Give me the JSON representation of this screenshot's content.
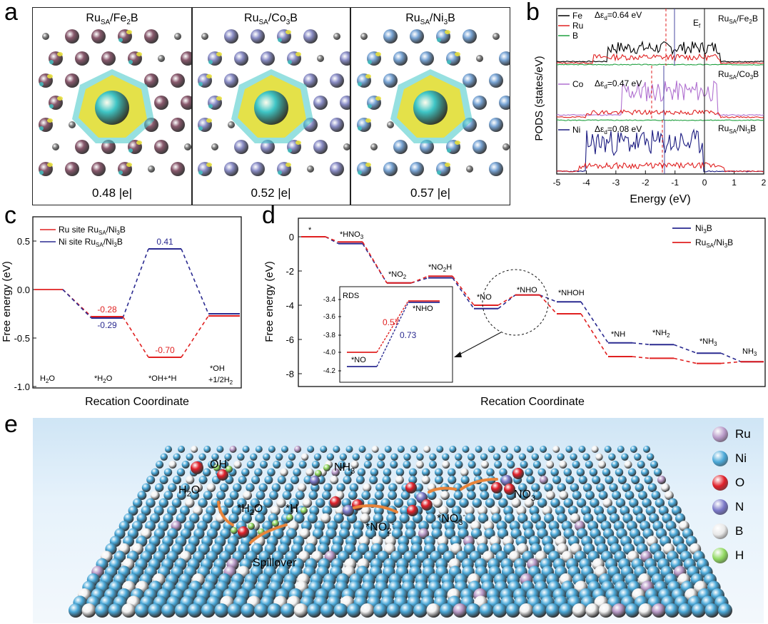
{
  "figure": {
    "panel_labels": {
      "a": "a",
      "b": "b",
      "c": "c",
      "d": "d",
      "e": "e"
    }
  },
  "panel_a": {
    "titles": [
      {
        "main": "Ru",
        "sub": "SA",
        "rest": "/Fe",
        "sub2": "2",
        "tail": "B"
      },
      {
        "main": "Ru",
        "sub": "SA",
        "rest": "/Co",
        "sub2": "3",
        "tail": "B"
      },
      {
        "main": "Ru",
        "sub": "SA",
        "rest": "/Ni",
        "sub2": "3",
        "tail": "B"
      }
    ],
    "charges": [
      "0.48 |e|",
      "0.52 |e|",
      "0.57 |e|"
    ],
    "colors": {
      "fe": "#8a5a6e",
      "co": "#8c8fc8",
      "ni": "#7aa6d6",
      "b": "#8a8a8a",
      "yellow": "#e8e040",
      "cyan": "#3fc6c6"
    }
  },
  "panel_b": {
    "ylabel": "PODS (states/eV)",
    "xlabel": "Energy (eV)",
    "xticks": [
      "-5",
      "-4",
      "-3",
      "-2",
      "-1",
      "0",
      "1",
      "2"
    ],
    "ef_label": "E",
    "ef_sub": "f",
    "legend1": [
      {
        "name": "Fe",
        "color": "#000000"
      },
      {
        "name": "Ru",
        "color": "#e02020"
      },
      {
        "name": "B",
        "color": "#20a040"
      }
    ],
    "legend2": {
      "name": "Co",
      "color": "#b070d0"
    },
    "legend3": {
      "name": "Ni",
      "color": "#1a1a80"
    },
    "deltas": [
      "Δε",
      "=0.64 eV",
      "=0.47 eV",
      "=0.08 eV"
    ],
    "delta_sub": "d",
    "sys": [
      "Ru",
      "SA",
      "/Fe",
      "2",
      "B",
      "/Co",
      "3",
      "/Ni"
    ]
  },
  "panel_c": {
    "ylabel": "Free energy (eV)",
    "xlabel": "Recation Coordinate",
    "yticks": [
      "0.5",
      "0.0",
      "-0.5",
      "-1.0"
    ],
    "legend": [
      {
        "name": "Ru site Ru",
        "color": "#e02020"
      },
      {
        "name": "Ni site Ru",
        "color": "#2a2a90"
      }
    ],
    "legend_tail": [
      "SA",
      "/Ni",
      "3",
      "B"
    ],
    "steps": [
      "H",
      "2",
      "O",
      "*H",
      "2",
      "O",
      "*OH+*H",
      "*OH",
      "+1/2H",
      "2"
    ],
    "values_red": [
      "-0.28",
      "-0.70"
    ],
    "values_blue": [
      "-0.29",
      "0.41"
    ],
    "colors": {
      "red": "#e02020",
      "blue": "#2a2a90"
    }
  },
  "panel_d": {
    "ylabel": "Free energy (eV)",
    "xlabel": "Recation Coordinate",
    "yticks": [
      "0",
      "-2",
      "-4",
      "-6",
      "-8"
    ],
    "legend": [
      {
        "name": "Ni",
        "sub": "3",
        "tail": "B",
        "color": "#2a2a90"
      },
      {
        "name": "Ru",
        "sub": "SA",
        "tail": "/Ni",
        "sub2": "3",
        "tail2": "B",
        "color": "#e02020"
      }
    ],
    "steps": [
      "*",
      "*HNO",
      "3",
      "*NO",
      "2",
      "*NO",
      "2",
      "H",
      "*NO",
      "*NHO",
      "*NHOH",
      "*NH",
      "*NH",
      "2",
      "*NH",
      "3",
      "NH",
      "3"
    ],
    "inset": {
      "title": "RDS",
      "yticks": [
        "-3.4",
        "-3.6",
        "-3.8",
        "-4.0",
        "-4.2"
      ],
      "red_value": "0.57",
      "blue_value": "0.73",
      "left_label": "*NO",
      "right_label": "*NHO"
    }
  },
  "panel_e": {
    "legend": [
      {
        "name": "Ru",
        "color": "#b89ac8"
      },
      {
        "name": "Ni",
        "color": "#4aa8d8"
      },
      {
        "name": "O",
        "color": "#e0202a"
      },
      {
        "name": "N",
        "color": "#7a78c8"
      },
      {
        "name": "B",
        "color": "#e8e8e8"
      },
      {
        "name": "H",
        "color": "#90d860"
      }
    ],
    "labels": {
      "oh": "OH",
      "oh_sup": "-",
      "h2o": "H",
      "h2o_sub": "2",
      "h2o_tail": "O",
      "sh2o": "*H",
      "sh2o_sub": "2",
      "sh2o_tail": "O",
      "sh": "*H",
      "nh3": "NH",
      "nh3_sub": "3",
      "no3": "NO",
      "no3_sub": "3",
      "no3_sup": "-",
      "sno3": "*NO",
      "sno3_sub": "3",
      "sno3_sup": "-",
      "sno2": "*NO",
      "sno2_sub": "2",
      "sno2_sup": "-",
      "spill": "Spillover"
    }
  }
}
